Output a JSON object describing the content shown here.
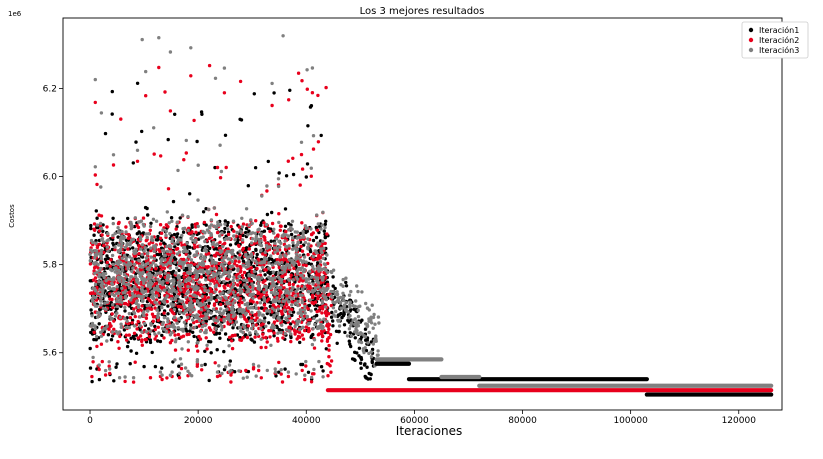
{
  "chart_data": {
    "type": "scatter",
    "title": "Los 3 mejores resultados",
    "xlabel": "Iteraciones",
    "ylabel": "Costos",
    "y_offset_text": "1e6",
    "xlim": [
      -5000,
      128000
    ],
    "ylim": [
      5.47,
      6.36
    ],
    "x_ticks": [
      0,
      20000,
      40000,
      60000,
      80000,
      100000,
      120000
    ],
    "y_ticks": [
      5.6,
      5.8,
      6.0,
      6.2
    ],
    "legend_position": "top-right",
    "grid": false,
    "series": [
      {
        "name": "Iteración1",
        "color": "#000000",
        "noise_region": {
          "x_start": 0,
          "x_end": 44000,
          "band_center": 5.76,
          "band_spread": 0.17,
          "outlier_max": 6.23
        },
        "tail_clusters": [
          {
            "x": 45000,
            "y": 5.72
          },
          {
            "x": 46000,
            "y": 5.68
          },
          {
            "x": 47000,
            "y": 5.7
          },
          {
            "x": 48000,
            "y": 5.66
          },
          {
            "x": 49000,
            "y": 5.64
          },
          {
            "x": 50000,
            "y": 5.62
          },
          {
            "x": 51000,
            "y": 5.6
          },
          {
            "x": 52000,
            "y": 5.59
          }
        ],
        "segments": [
          {
            "x_start": 53000,
            "x_end": 59000,
            "y": 5.575
          },
          {
            "x_start": 59000,
            "x_end": 103000,
            "y": 5.54
          },
          {
            "x_start": 103000,
            "x_end": 126000,
            "y": 5.505
          }
        ]
      },
      {
        "name": "Iteración2",
        "color": "#e8001c",
        "noise_region": {
          "x_start": 0,
          "x_end": 44000,
          "band_center": 5.76,
          "band_spread": 0.17,
          "outlier_max": 6.26
        },
        "tail_clusters": [
          {
            "x": 44200,
            "y": 5.7
          },
          {
            "x": 44300,
            "y": 5.6
          }
        ],
        "segments": [
          {
            "x_start": 44000,
            "x_end": 126000,
            "y": 5.515
          }
        ]
      },
      {
        "name": "Iteración3",
        "color": "#808080",
        "noise_region": {
          "x_start": 0,
          "x_end": 44000,
          "band_center": 5.77,
          "band_spread": 0.16,
          "outlier_max": 6.33
        },
        "tail_clusters": [
          {
            "x": 45000,
            "y": 5.74
          },
          {
            "x": 46000,
            "y": 5.7
          },
          {
            "x": 47000,
            "y": 5.72
          },
          {
            "x": 48000,
            "y": 5.68
          },
          {
            "x": 49000,
            "y": 5.7
          },
          {
            "x": 50000,
            "y": 5.68
          },
          {
            "x": 51000,
            "y": 5.66
          },
          {
            "x": 52000,
            "y": 5.65
          },
          {
            "x": 53000,
            "y": 5.63
          }
        ],
        "segments": [
          {
            "x_start": 53000,
            "x_end": 65000,
            "y": 5.585
          },
          {
            "x_start": 65000,
            "x_end": 72000,
            "y": 5.545
          },
          {
            "x_start": 72000,
            "x_end": 126000,
            "y": 5.525
          }
        ]
      }
    ]
  }
}
